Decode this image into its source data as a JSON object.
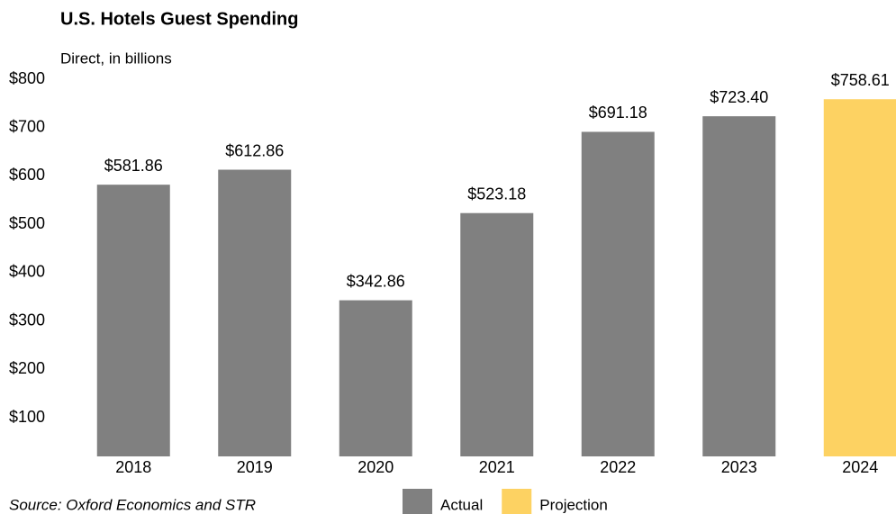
{
  "chart_data": {
    "type": "bar",
    "title": "U.S. Hotels Guest Spending",
    "subtitle": "Direct, in billions",
    "source": "Source: Oxford Economics and STR",
    "categories": [
      "2018",
      "2019",
      "2020",
      "2021",
      "2022",
      "2023",
      "2024"
    ],
    "series": [
      {
        "name": "Actual",
        "color": "#808080",
        "values": [
          581.86,
          612.86,
          342.86,
          523.18,
          691.18,
          723.4,
          null
        ],
        "value_labels": [
          "$581.86",
          "$612.86",
          "$342.86",
          "$523.18",
          "$691.18",
          "$723.40",
          null
        ]
      },
      {
        "name": "Projection",
        "color": "#fdd262",
        "values": [
          null,
          null,
          null,
          null,
          null,
          null,
          758.61
        ],
        "value_labels": [
          null,
          null,
          null,
          null,
          null,
          null,
          "$758.61"
        ]
      }
    ],
    "ylim": [
      20,
      800
    ],
    "yticks": [
      {
        "value": 100,
        "label": "$100"
      },
      {
        "value": 200,
        "label": "$200"
      },
      {
        "value": 300,
        "label": "$300"
      },
      {
        "value": 400,
        "label": "$400"
      },
      {
        "value": 500,
        "label": "$500"
      },
      {
        "value": 600,
        "label": "$600"
      },
      {
        "value": 700,
        "label": "$700"
      },
      {
        "value": 800,
        "label": "$800"
      }
    ],
    "legend": "bottom"
  }
}
